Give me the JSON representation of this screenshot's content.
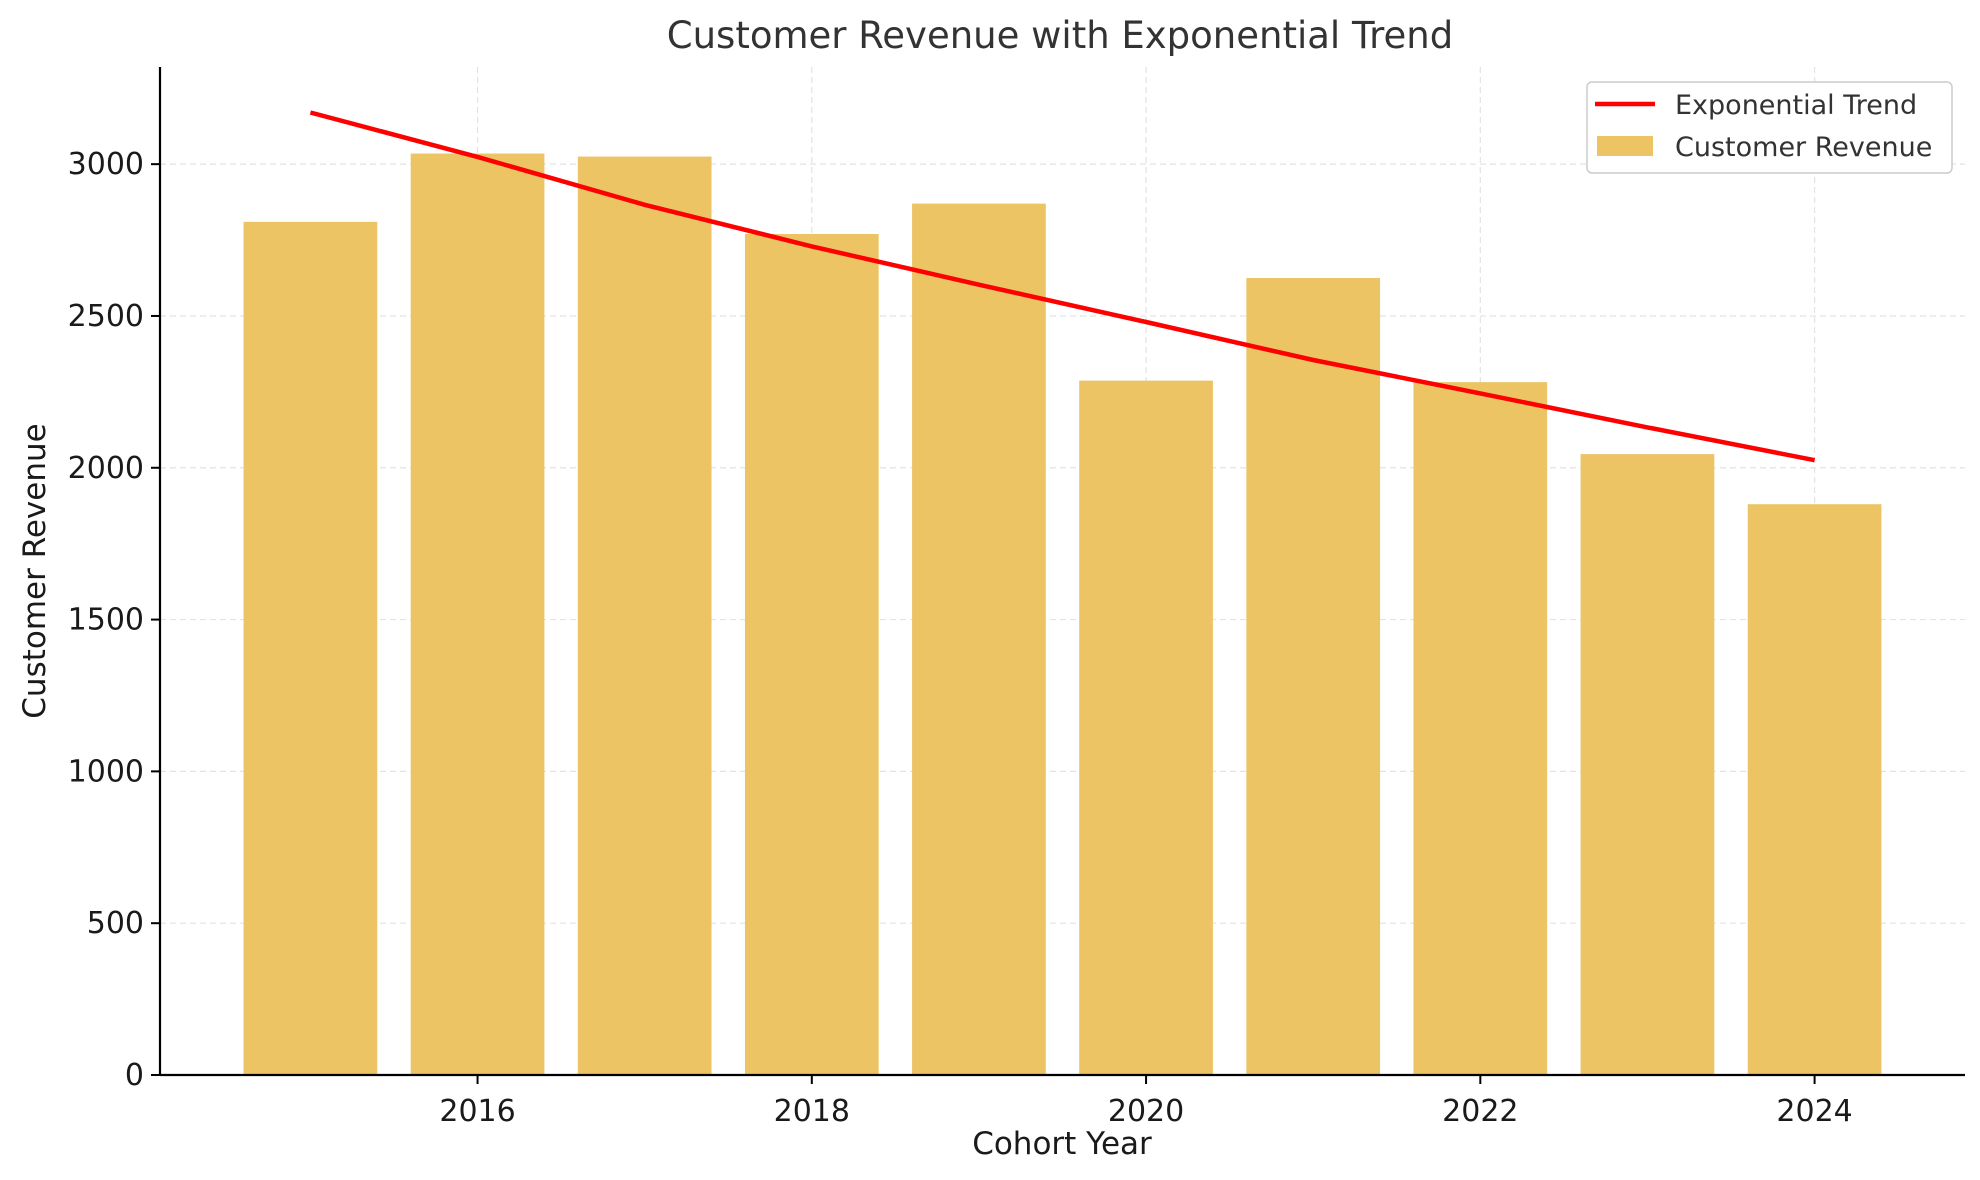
{
  "chart_data": {
    "type": "bar",
    "title": "Customer Revenue with Exponential Trend",
    "xlabel": "Cohort Year",
    "ylabel": "Customer Revenue",
    "x": [
      2015,
      2016,
      2017,
      2018,
      2019,
      2020,
      2021,
      2022,
      2023,
      2024
    ],
    "xticks": [
      "2016",
      "2018",
      "2020",
      "2022",
      "2024"
    ],
    "yticks": [
      "0",
      "500",
      "1000",
      "1500",
      "2000",
      "2500",
      "3000"
    ],
    "ylim": [
      0,
      3320
    ],
    "xlim": [
      2014.1,
      2024.9
    ],
    "grid": true,
    "legend_position": "top-right",
    "series": [
      {
        "name": "Customer Revenue",
        "kind": "bar",
        "color": "#ecc464",
        "values": [
          2810,
          3035,
          3025,
          2770,
          2870,
          2287,
          2625,
          2282,
          2045,
          1880
        ]
      },
      {
        "name": "Exponential Trend",
        "kind": "line",
        "color": "#ff0000",
        "values": [
          3170,
          3024,
          2866,
          2729,
          2603,
          2480,
          2355,
          2245,
          2133,
          2025
        ]
      }
    ]
  }
}
